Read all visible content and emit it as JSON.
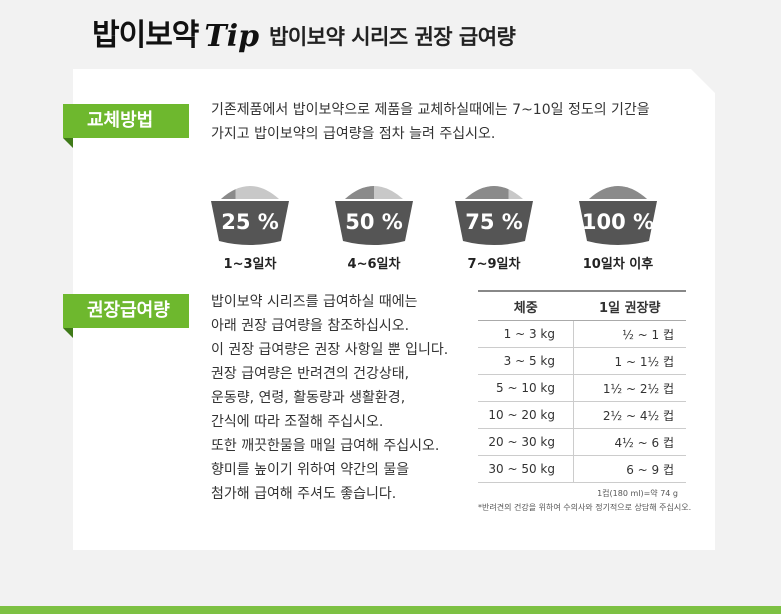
{
  "header": {
    "brand": "밥이보약",
    "tip": "Tip",
    "subtitle": "밥이보약 시리즈 권장 급여량"
  },
  "section1": {
    "label": "교체방법",
    "lines": [
      "기존제품에서 밥이보약으로 제품을 교체하실때에는 7~10일 정도의 기간을",
      "가지고 밥이보약의 급여량을 점차 늘려 주십시오."
    ],
    "bowls": [
      {
        "percent": "25 %",
        "fraction": 0.25,
        "caption": "1~3일차"
      },
      {
        "percent": "50 %",
        "fraction": 0.5,
        "caption": "4~6일차"
      },
      {
        "percent": "75 %",
        "fraction": 0.75,
        "caption": "7~9일차"
      },
      {
        "percent": "100 %",
        "fraction": 1.0,
        "caption": "10일차 이후"
      }
    ]
  },
  "section2": {
    "label": "권장급여량",
    "lines": [
      "밥이보약 시리즈를 급여하실 때에는",
      "아래 권장 급여량을 참조하십시오.",
      "이 권장 급여량은 권장 사항일 뿐 입니다.",
      "권장 급여량은 반려견의 건강상태,",
      "운동량, 연령, 활동량과 생활환경,",
      "간식에 따라 조절해 주십시오.",
      "또한 깨끗한물을 매일 급여해 주십시오.",
      "향미를 높이기 위하여 약간의 물을",
      "첨가해 급여해 주셔도 좋습니다."
    ],
    "table": {
      "headers": [
        "체중",
        "1일 권장량"
      ],
      "rows": [
        [
          "1 ~ 3 kg",
          "½ ~ 1 컵"
        ],
        [
          "3 ~ 5 kg",
          "1 ~ 1½ 컵"
        ],
        [
          "5 ~ 10 kg",
          "1½ ~ 2½ 컵"
        ],
        [
          "10 ~ 20 kg",
          "2½ ~ 4½ 컵"
        ],
        [
          "20 ~ 30 kg",
          "4½ ~ 6 컵"
        ],
        [
          "30 ~ 50 kg",
          "6 ~ 9 컵"
        ]
      ]
    },
    "note1": "1컵(180 ml)=약 74 g",
    "note2": "*반려견의 건강을 위하여 수의사와 정기적으로 상담해 주십시오."
  },
  "colors": {
    "green": "#6eb82e",
    "bowl": "#555555",
    "food_new": "#8a8a8a",
    "food_old": "#c8c8c8"
  }
}
